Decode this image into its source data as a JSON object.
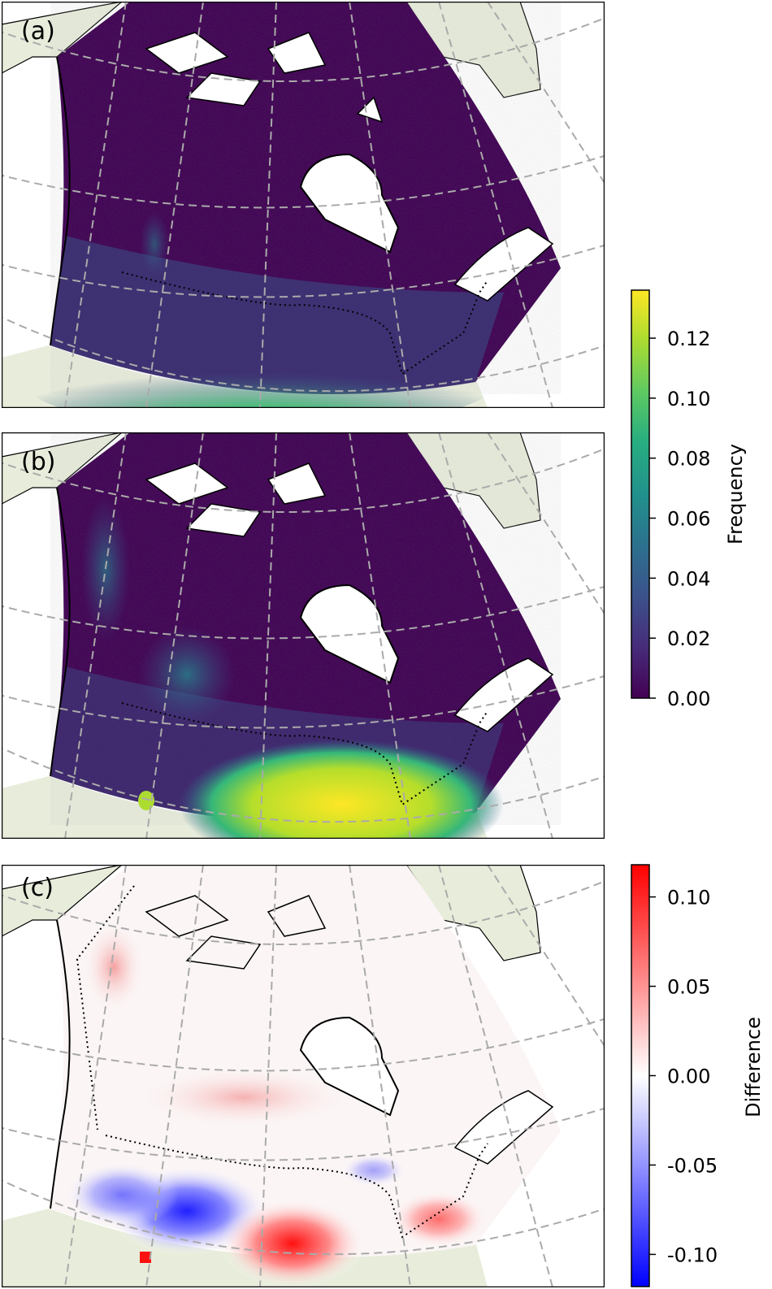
{
  "figure": {
    "panels": [
      {
        "label": "(a)",
        "type": "frequency",
        "colormap": "viridis",
        "vmin": 0.0,
        "vmax": 0.136,
        "pattern": "low frequency across northern Canada, increasing toward the southern prairies and Great Lakes / St. Lawrence region"
      },
      {
        "label": "(b)",
        "type": "frequency",
        "colormap": "viridis",
        "vmin": 0.0,
        "vmax": 0.136,
        "pattern": "very high frequency over southern Ontario / Quebec border region, elevated values along western cordillera"
      },
      {
        "label": "(c)",
        "type": "difference",
        "colormap": "bwr",
        "vmin": -0.118,
        "vmax": 0.118,
        "pattern": "negative (blue) over southern prairies, positive (red) over southern Ontario and parts of western cordillera"
      }
    ],
    "colorbars": [
      {
        "title": "Frequency",
        "ticks": [
          "0.00",
          "0.02",
          "0.04",
          "0.06",
          "0.08",
          "0.10",
          "0.12"
        ],
        "colors": [
          "#440154",
          "#3b528b",
          "#21918c",
          "#5ec962",
          "#fde725"
        ]
      },
      {
        "title": "Difference",
        "ticks": [
          "-0.10",
          "-0.05",
          "0.00",
          "0.05",
          "0.10"
        ],
        "colors": [
          "#0000ff",
          "#ffffff",
          "#ff0000"
        ]
      }
    ],
    "map_style": {
      "land_outside_color": "#e8eddb",
      "water_color": "#ffffff",
      "gridline_color": "#aaaaaa",
      "coastline_color": "#000000"
    }
  }
}
